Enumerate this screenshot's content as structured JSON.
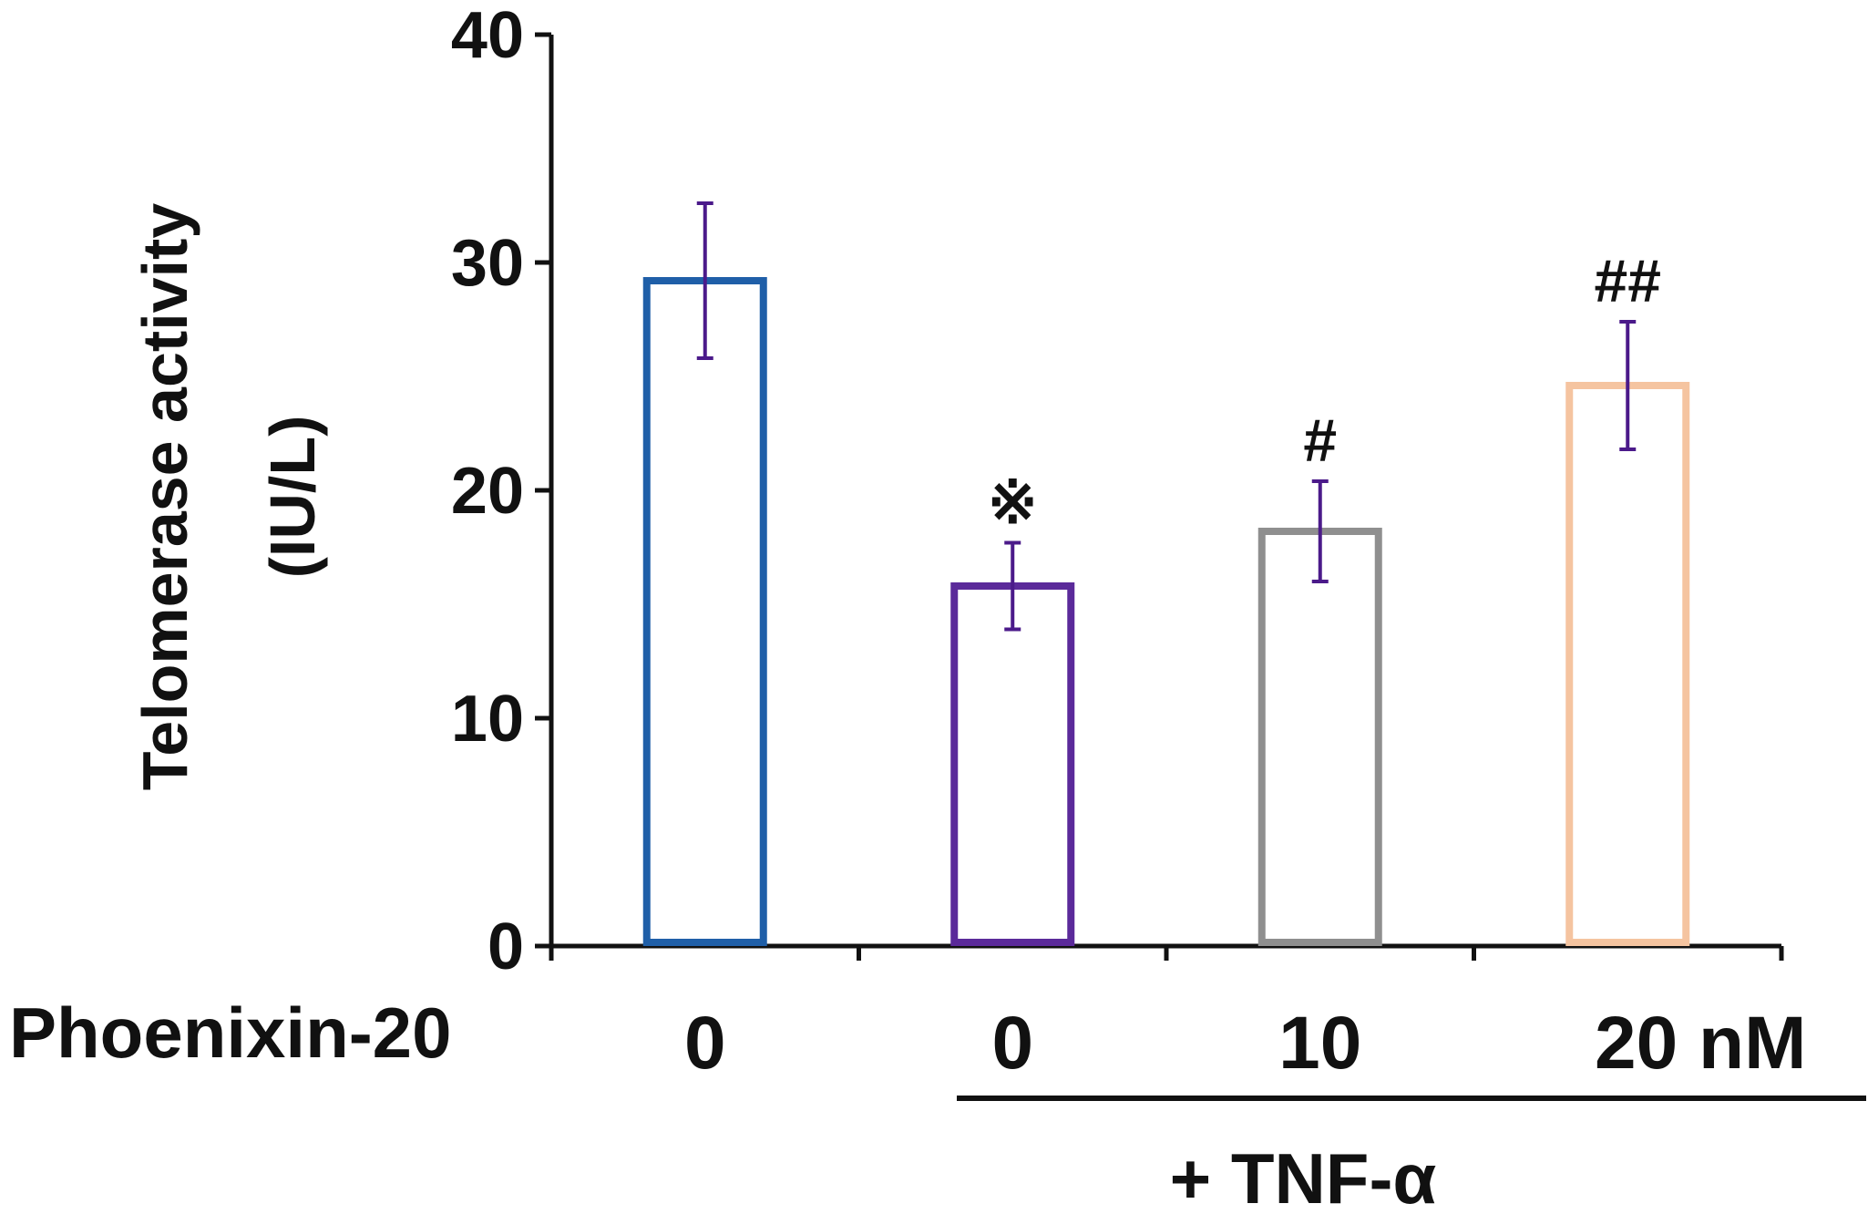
{
  "chart_data": {
    "type": "bar",
    "ylabel": [
      "Telomerase activity",
      "(IU/L)"
    ],
    "ylim": [
      0,
      40
    ],
    "yticks": [
      0,
      10,
      20,
      30,
      40
    ],
    "row_label": "Phoenixin-20",
    "categories": [
      "0",
      "0",
      "10",
      "20 nM"
    ],
    "values": [
      29.2,
      15.8,
      18.2,
      24.6
    ],
    "errors": [
      3.4,
      1.9,
      2.2,
      2.8
    ],
    "significance": [
      "",
      "※",
      "#",
      "##"
    ],
    "bar_colors": [
      "#1f5fa8",
      "#5b2a9a",
      "#8f8f8f",
      "#f5c4a0"
    ],
    "error_bar_color": "#4b1a8a",
    "group_label": "+ TNF-α",
    "grid": false,
    "legend": "none"
  }
}
